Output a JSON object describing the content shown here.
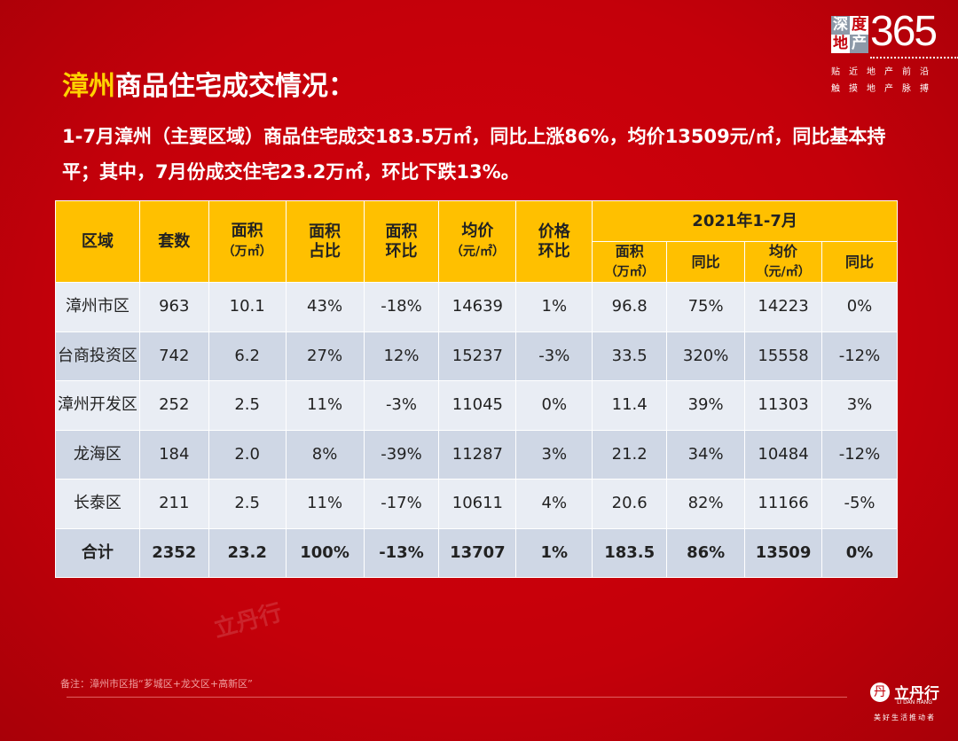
{
  "logo": {
    "chars": [
      "深",
      "度",
      "地",
      "产"
    ],
    "number": "365",
    "tagline": [
      "贴近地产前沿",
      "触摸地产脉搏"
    ]
  },
  "title": {
    "highlight": "漳州",
    "rest": "商品住宅成交情况："
  },
  "summary": "1-7月漳州（主要区域）商品住宅成交183.5万㎡，同比上涨86%，均价13509元/㎡，同比基本持平；其中，7月份成交住宅23.2万㎡，环比下跌13%。",
  "table": {
    "headers": {
      "region": "区域",
      "units": "套数",
      "area": "面积",
      "area_unit": "（万㎡）",
      "area_share": "面积占比",
      "area_mom": "面积环比",
      "avg_price": "均价",
      "price_unit": "（元/㎡）",
      "price_mom": "价格环比",
      "ytd_group": "2021年1-7月",
      "ytd_area": "面积",
      "ytd_area_unit": "（万㎡）",
      "ytd_area_yoy": "同比",
      "ytd_price": "均价",
      "ytd_price_unit": "（元/㎡）",
      "ytd_price_yoy": "同比"
    },
    "rows": [
      [
        "漳州市区",
        "963",
        "10.1",
        "43%",
        "-18%",
        "14639",
        "1%",
        "96.8",
        "75%",
        "14223",
        "0%"
      ],
      [
        "台商投资区",
        "742",
        "6.2",
        "27%",
        "12%",
        "15237",
        "-3%",
        "33.5",
        "320%",
        "15558",
        "-12%"
      ],
      [
        "漳州开发区",
        "252",
        "2.5",
        "11%",
        "-3%",
        "11045",
        "0%",
        "11.4",
        "39%",
        "11303",
        "3%"
      ],
      [
        "龙海区",
        "184",
        "2.0",
        "8%",
        "-39%",
        "11287",
        "3%",
        "21.2",
        "34%",
        "10484",
        "-12%"
      ],
      [
        "长泰区",
        "211",
        "2.5",
        "11%",
        "-17%",
        "10611",
        "4%",
        "20.6",
        "82%",
        "11166",
        "-5%"
      ],
      [
        "合计",
        "2352",
        "23.2",
        "100%",
        "-13%",
        "13707",
        "1%",
        "183.5",
        "86%",
        "13509",
        "0%"
      ]
    ]
  },
  "note": "备注：漳州市区指“芗城区+龙文区+高新区”",
  "brand": {
    "name": "立丹行",
    "en": "LI DAN HANG",
    "slogan": "美好生活推动者"
  },
  "watermark": "立丹行",
  "colors": {
    "background": "#c4000a",
    "header": "#ffc000",
    "title_highlight": "#ffd200"
  }
}
